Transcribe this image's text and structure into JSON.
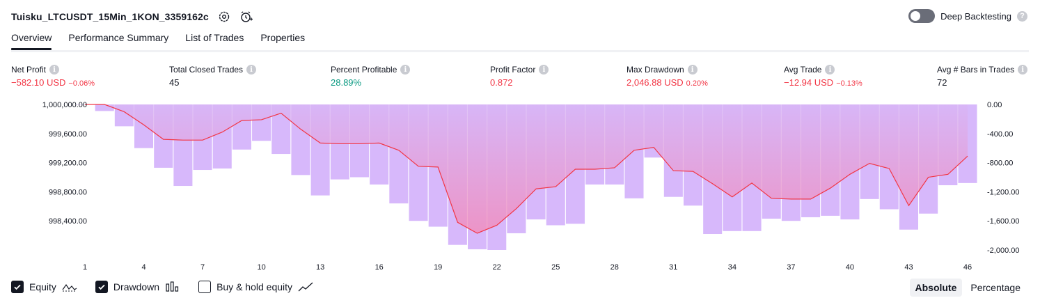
{
  "header": {
    "strategy_title": "Tuisku_LTCUSDT_15Min_1KON_3359162c",
    "deep_backtesting_label": "Deep Backtesting",
    "deep_backtesting_on": false
  },
  "tabs": [
    {
      "label": "Overview",
      "active": true
    },
    {
      "label": "Performance Summary",
      "active": false
    },
    {
      "label": "List of Trades",
      "active": false
    },
    {
      "label": "Properties",
      "active": false
    }
  ],
  "metrics": [
    {
      "label": "Net Profit",
      "value": "−582.10 USD",
      "pct": "−0.06%",
      "tone": "neg"
    },
    {
      "label": "Total Closed Trades",
      "value": "45",
      "pct": "",
      "tone": "neu"
    },
    {
      "label": "Percent Profitable",
      "value": "28.89%",
      "pct": "",
      "tone": "pos"
    },
    {
      "label": "Profit Factor",
      "value": "0.872",
      "pct": "",
      "tone": "neg"
    },
    {
      "label": "Max Drawdown",
      "value": "2,046.88 USD",
      "pct": "0.20%",
      "tone": "neg"
    },
    {
      "label": "Avg Trade",
      "value": "−12.94 USD",
      "pct": "−0.13%",
      "tone": "neg"
    },
    {
      "label": "Avg # Bars in Trades",
      "value": "72",
      "pct": "",
      "tone": "neu"
    }
  ],
  "legend": {
    "equity_label": "Equity",
    "equity_checked": true,
    "drawdown_label": "Drawdown",
    "drawdown_checked": true,
    "buyhold_label": "Buy & hold equity",
    "buyhold_checked": false
  },
  "modes": {
    "absolute_label": "Absolute",
    "percentage_label": "Percentage",
    "active": "absolute"
  },
  "colors": {
    "equity_line": "#f23645",
    "drawdown_bar": "#d7b8fb",
    "negative": "#f23645",
    "positive": "#089981"
  },
  "chart_data": {
    "type": "area",
    "x_ticks": [
      1,
      4,
      7,
      10,
      13,
      16,
      19,
      22,
      25,
      28,
      31,
      34,
      37,
      40,
      43,
      46
    ],
    "left_axis": {
      "ticks": [
        "1,000,000.00",
        "999,600.00",
        "999,200.00",
        "998,800.00",
        "998,400.00"
      ],
      "range": [
        998000,
        1000000
      ]
    },
    "right_axis": {
      "ticks": [
        "0.00",
        "-400.00",
        "-800.00",
        "-1,200.00",
        "-1,600.00",
        "-2,000.00"
      ],
      "range": [
        -2000,
        0
      ]
    },
    "series": [
      {
        "name": "Equity",
        "type": "line",
        "x": [
          1,
          2,
          3,
          4,
          5,
          6,
          7,
          8,
          9,
          10,
          11,
          12,
          13,
          14,
          15,
          16,
          17,
          18,
          19,
          20,
          21,
          22,
          23,
          24,
          25,
          26,
          27,
          28,
          29,
          30,
          31,
          32,
          33,
          34,
          35,
          36,
          37,
          38,
          39,
          40,
          41,
          42,
          43,
          44,
          45,
          46
        ],
        "values": [
          1000000,
          1000000,
          999900,
          999720,
          999520,
          999510,
          999510,
          999620,
          999780,
          999790,
          999880,
          999660,
          999470,
          999460,
          999460,
          999470,
          999370,
          999150,
          999140,
          998380,
          998230,
          998340,
          998570,
          998840,
          998870,
          999110,
          999110,
          999130,
          999370,
          999410,
          999090,
          999080,
          998910,
          998730,
          998920,
          998710,
          998700,
          998700,
          998850,
          999040,
          999190,
          999120,
          998610,
          999000,
          999040,
          999290
        ]
      },
      {
        "name": "Drawdown",
        "type": "bar",
        "x": [
          1,
          2,
          3,
          4,
          5,
          6,
          7,
          8,
          9,
          10,
          11,
          12,
          13,
          14,
          15,
          16,
          17,
          18,
          19,
          20,
          21,
          22,
          23,
          24,
          25,
          26,
          27,
          28,
          29,
          30,
          31,
          32,
          33,
          34,
          35,
          36,
          37,
          38,
          39,
          40,
          41,
          42,
          43,
          44,
          45,
          46
        ],
        "values": [
          0,
          -90,
          -300,
          -600,
          -870,
          -1120,
          -900,
          -880,
          -620,
          -500,
          -680,
          -970,
          -1250,
          -1030,
          -1000,
          -1100,
          -1360,
          -1600,
          -1680,
          -1930,
          -1990,
          -2000,
          -1770,
          -1580,
          -1660,
          -1640,
          -1100,
          -1100,
          -1290,
          -730,
          -1270,
          -1390,
          -1780,
          -1740,
          -1740,
          -1570,
          -1600,
          -1550,
          -1530,
          -1580,
          -1300,
          -1440,
          -1720,
          -1500,
          -1110,
          -1080
        ]
      }
    ]
  }
}
